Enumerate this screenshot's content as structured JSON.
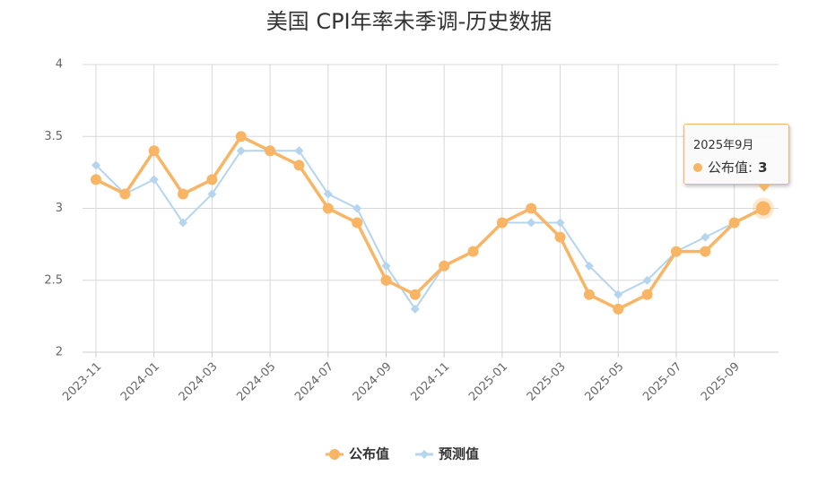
{
  "chart_data": {
    "type": "line",
    "title": "美国 CPI年率未季调-历史数据",
    "categories": [
      "2023-11",
      null,
      "2024-01",
      null,
      "2024-03",
      null,
      "2024-05",
      null,
      "2024-07",
      null,
      "2024-09",
      null,
      "2024-11",
      null,
      "2025-01",
      null,
      "2025-03",
      null,
      "2025-05",
      null,
      "2025-07",
      null,
      "2025-09",
      null
    ],
    "series": [
      {
        "name": "公布值",
        "color": "#f7b565",
        "values": [
          3.2,
          3.1,
          3.4,
          3.1,
          3.2,
          3.5,
          3.4,
          3.3,
          3.0,
          2.9,
          2.5,
          2.4,
          2.6,
          2.7,
          2.9,
          3.0,
          2.8,
          2.4,
          2.3,
          2.4,
          2.7,
          2.7,
          2.9,
          3.0
        ]
      },
      {
        "name": "预测值",
        "color": "#b5d5ee",
        "values": [
          3.3,
          3.1,
          3.2,
          2.9,
          3.1,
          3.4,
          3.4,
          3.4,
          3.1,
          3.0,
          2.6,
          2.3,
          2.6,
          2.7,
          2.9,
          2.9,
          2.9,
          2.6,
          2.4,
          2.5,
          2.7,
          2.8,
          2.9,
          null
        ]
      }
    ],
    "ylim": [
      2,
      4
    ],
    "yticks": [
      2,
      2.5,
      3,
      3.5,
      4
    ],
    "grid": true,
    "legend": "bottom",
    "tooltip": {
      "title": "2025年9月"
    }
  }
}
